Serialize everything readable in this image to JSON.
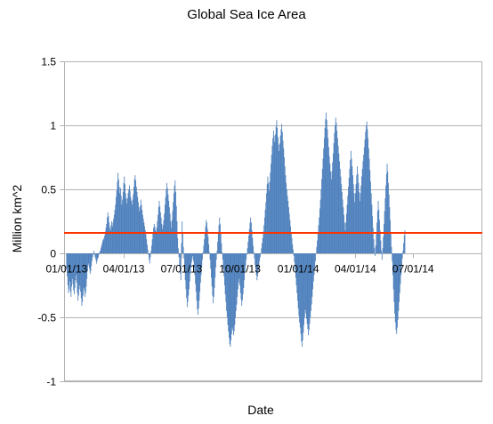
{
  "chart_data": {
    "type": "bar",
    "title": "Global Sea Ice Area",
    "xlabel": "Date",
    "ylabel": "Million km^2",
    "ylim": [
      -1,
      1.5
    ],
    "yticks": [
      -1,
      -0.5,
      0,
      0.5,
      1,
      1.5
    ],
    "ytick_labels": [
      "-1",
      "-0.5",
      "0",
      "0.5",
      "1",
      "1.5"
    ],
    "xlim": [
      "2012-12-28",
      "2014-10-18"
    ],
    "xticks": [
      "2013-01-01",
      "2013-04-01",
      "2013-07-01",
      "2013-10-01",
      "2014-01-01",
      "2014-04-01",
      "2014-07-01"
    ],
    "xtick_labels": [
      "01/01/13",
      "04/01/13",
      "07/01/13",
      "10/01/13",
      "01/01/14",
      "04/01/14",
      "07/01/14"
    ],
    "grid": true,
    "legend": false,
    "series_color": "#4f81bd",
    "reference_line": {
      "value": 0.16,
      "color": "#ff3300"
    },
    "series": [
      {
        "x_start": "2013-01-01",
        "step_days": 1,
        "values": [
          -0.12,
          -0.18,
          -0.25,
          -0.31,
          -0.28,
          -0.22,
          -0.3,
          -0.34,
          -0.26,
          -0.2,
          -0.24,
          -0.29,
          -0.32,
          -0.27,
          -0.21,
          -0.17,
          -0.23,
          -0.31,
          -0.37,
          -0.33,
          -0.28,
          -0.25,
          -0.3,
          -0.35,
          -0.41,
          -0.38,
          -0.33,
          -0.27,
          -0.29,
          -0.34,
          -0.31,
          -0.26,
          -0.2,
          -0.14,
          -0.1,
          -0.08,
          -0.12,
          -0.16,
          -0.14,
          -0.1,
          -0.06,
          -0.03,
          -0.01,
          0.02,
          -0.01,
          -0.03,
          -0.05,
          -0.08,
          -0.06,
          -0.04,
          -0.03,
          -0.01,
          0.01,
          0.02,
          0.04,
          0.06,
          0.08,
          0.1,
          0.11,
          0.12,
          0.14,
          0.17,
          0.2,
          0.23,
          0.28,
          0.32,
          0.29,
          0.24,
          0.2,
          0.18,
          0.22,
          0.25,
          0.21,
          0.24,
          0.27,
          0.3,
          0.34,
          0.38,
          0.44,
          0.49,
          0.56,
          0.63,
          0.58,
          0.52,
          0.47,
          0.51,
          0.45,
          0.38,
          0.42,
          0.48,
          0.55,
          0.6,
          0.54,
          0.47,
          0.43,
          0.39,
          0.43,
          0.47,
          0.5,
          0.53,
          0.49,
          0.44,
          0.41,
          0.38,
          0.42,
          0.46,
          0.52,
          0.58,
          0.61,
          0.57,
          0.52,
          0.48,
          0.44,
          0.4,
          0.36,
          0.33,
          0.37,
          0.42,
          0.38,
          0.34,
          0.3,
          0.27,
          0.24,
          0.21,
          0.18,
          0.15,
          0.11,
          0.07,
          0.03,
          -0.01,
          -0.05,
          -0.08,
          -0.03,
          0.02,
          0.06,
          0.11,
          0.16,
          0.2,
          0.23,
          0.21,
          0.18,
          0.16,
          0.2,
          0.25,
          0.3,
          0.36,
          0.41,
          0.37,
          0.32,
          0.28,
          0.23,
          0.19,
          0.22,
          0.26,
          0.31,
          0.38,
          0.44,
          0.5,
          0.55,
          0.51,
          0.46,
          0.41,
          0.36,
          0.31,
          0.25,
          0.2,
          0.26,
          0.33,
          0.4,
          0.47,
          0.53,
          0.57,
          0.48,
          0.37,
          0.25,
          0.12,
          0.04,
          -0.03,
          -0.1,
          -0.16,
          -0.21,
          0.08,
          0.25,
          0.16,
          0.05,
          -0.04,
          -0.12,
          -0.21,
          -0.28,
          -0.35,
          -0.42,
          -0.38,
          -0.33,
          -0.28,
          -0.22,
          -0.16,
          -0.11,
          -0.07,
          -0.04,
          -0.02,
          -0.06,
          -0.11,
          -0.17,
          -0.24,
          -0.3,
          -0.37,
          -0.44,
          -0.48,
          -0.43,
          -0.37,
          -0.3,
          -0.23,
          -0.17,
          -0.11,
          -0.05,
          0.01,
          0.06,
          0.11,
          0.16,
          0.21,
          0.26,
          0.24,
          0.19,
          0.13,
          0.07,
          0.01,
          -0.05,
          -0.12,
          -0.19,
          -0.26,
          -0.33,
          -0.39,
          -0.34,
          -0.27,
          -0.19,
          -0.11,
          -0.05,
          0.02,
          0.09,
          0.16,
          0.22,
          0.28,
          0.23,
          0.16,
          0.08,
          0.01,
          -0.05,
          -0.12,
          -0.18,
          -0.25,
          -0.32,
          -0.38,
          -0.45,
          -0.5,
          -0.56,
          -0.61,
          -0.66,
          -0.71,
          -0.73,
          -0.68,
          -0.63,
          -0.58,
          -0.6,
          -0.64,
          -0.61,
          -0.56,
          -0.5,
          -0.45,
          -0.4,
          -0.34,
          -0.28,
          -0.23,
          -0.2,
          -0.25,
          -0.31,
          -0.36,
          -0.41,
          -0.37,
          -0.32,
          -0.27,
          -0.21,
          -0.15,
          -0.1,
          -0.05,
          -0.01,
          0.04,
          0.09,
          0.14,
          0.19,
          0.24,
          0.28,
          0.24,
          0.18,
          0.12,
          0.06,
          0.01,
          -0.04,
          -0.09,
          -0.13,
          -0.17,
          -0.21,
          -0.18,
          -0.14,
          -0.1,
          -0.06,
          -0.03,
          0.0,
          0.04,
          0.08,
          0.12,
          0.17,
          0.22,
          0.28,
          0.34,
          0.4,
          0.47,
          0.54,
          0.6,
          0.55,
          0.49,
          0.56,
          0.63,
          0.7,
          0.77,
          0.84,
          0.9,
          0.96,
          0.92,
          0.87,
          0.93,
          0.99,
          1.04,
          0.98,
          0.91,
          0.85,
          0.8,
          0.86,
          0.92,
          0.97,
          1.01,
          0.95,
          0.88,
          0.82,
          0.75,
          0.68,
          0.61,
          0.55,
          0.5,
          0.45,
          0.41,
          0.36,
          0.31,
          0.26,
          0.21,
          0.16,
          0.12,
          0.07,
          0.03,
          -0.02,
          -0.07,
          -0.13,
          -0.19,
          -0.25,
          -0.31,
          -0.37,
          -0.43,
          -0.49,
          -0.54,
          -0.58,
          -0.63,
          -0.69,
          -0.73,
          -0.68,
          -0.62,
          -0.56,
          -0.5,
          -0.44,
          -0.47,
          -0.51,
          -0.55,
          -0.59,
          -0.64,
          -0.6,
          -0.55,
          -0.5,
          -0.45,
          -0.4,
          -0.34,
          -0.28,
          -0.22,
          -0.17,
          -0.11,
          -0.06,
          0.0,
          0.05,
          0.1,
          0.16,
          0.22,
          0.28,
          0.35,
          0.42,
          0.5,
          0.58,
          0.66,
          0.74,
          0.82,
          0.9,
          0.98,
          1.05,
          1.1,
          1.04,
          0.97,
          0.9,
          0.83,
          0.76,
          0.7,
          0.64,
          0.58,
          0.64,
          0.71,
          0.78,
          0.86,
          0.94,
          1.0,
          1.06,
          1.02,
          0.96,
          0.9,
          0.84,
          0.78,
          0.72,
          0.66,
          0.6,
          0.54,
          0.48,
          0.42,
          0.36,
          0.3,
          0.24,
          0.18,
          0.24,
          0.31,
          0.38,
          0.45,
          0.52,
          0.59,
          0.66,
          0.73,
          0.8,
          0.74,
          0.68,
          0.61,
          0.54,
          0.47,
          0.4,
          0.47,
          0.54,
          0.61,
          0.68,
          0.62,
          0.55,
          0.48,
          0.41,
          0.47,
          0.53,
          0.6,
          0.66,
          0.72,
          0.77,
          0.83,
          0.89,
          0.95,
          1.0,
          1.03,
          0.97,
          0.9,
          0.82,
          0.74,
          0.65,
          0.56,
          0.47,
          0.38,
          0.29,
          0.2,
          0.11,
          0.04,
          -0.02,
          0.06,
          0.15,
          0.24,
          0.33,
          0.41,
          0.34,
          0.26,
          0.18,
          0.1,
          0.02,
          -0.05,
          0.04,
          0.13,
          0.23,
          0.33,
          0.43,
          0.53,
          0.62,
          0.7,
          0.64,
          0.55,
          0.46,
          0.36,
          0.26,
          0.15,
          0.05,
          -0.06,
          -0.17,
          -0.28,
          -0.38,
          -0.47,
          -0.54,
          -0.6,
          -0.63,
          -0.58,
          -0.52,
          -0.45,
          -0.38,
          -0.31,
          -0.24,
          -0.17,
          -0.1,
          -0.04,
          0.02,
          0.08,
          0.14,
          0.18
        ]
      }
    ]
  }
}
